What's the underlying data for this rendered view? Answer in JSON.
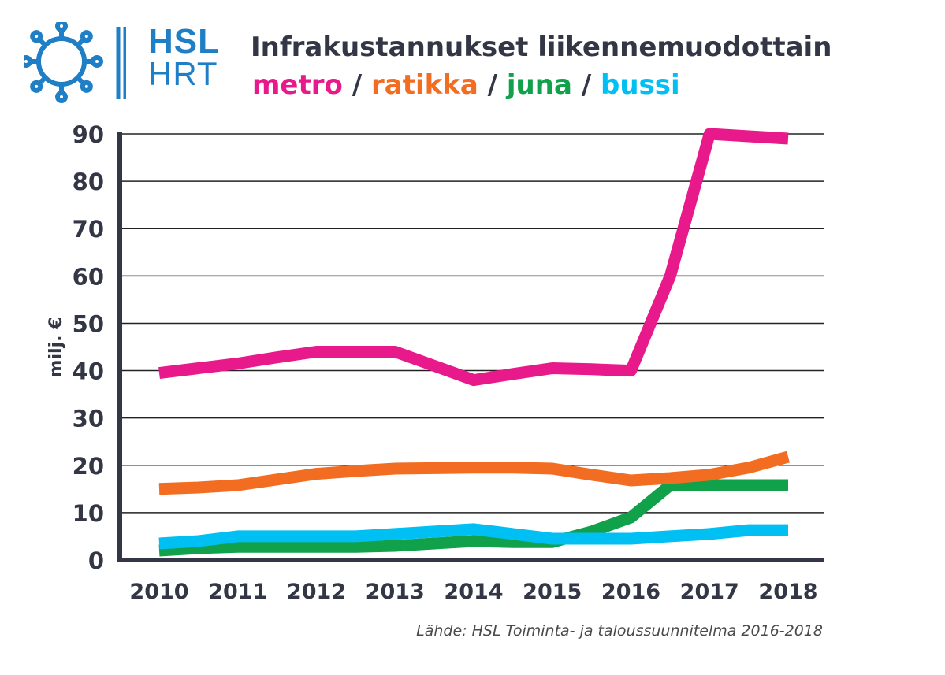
{
  "logo": {
    "line1": "HSL",
    "line2": "HRT"
  },
  "header": {
    "title": "Infrakustannukset liikennemuodottain",
    "separator": "/"
  },
  "source": "Lähde: HSL Toiminta- ja taloussuunnitelma 2016-2018",
  "colors": {
    "metro": "#e8198b",
    "ratikka": "#f26c21",
    "juna": "#10a14a",
    "bussi": "#00bff3",
    "dark": "#333745",
    "logo": "#1f7fc6"
  },
  "chart_data": {
    "type": "line",
    "title": "Infrakustannukset liikennemuodottain",
    "xlabel": "",
    "ylabel": "milj. €",
    "ylim": [
      0,
      90
    ],
    "yticks": [
      0,
      10,
      20,
      30,
      40,
      50,
      60,
      70,
      80,
      90
    ],
    "grid": true,
    "categories": [
      "2010",
      "2011",
      "2012",
      "2013",
      "2014",
      "2015",
      "2016",
      "2017",
      "2018"
    ],
    "x": [
      2010,
      2010.5,
      2011,
      2011.5,
      2012,
      2012.5,
      2013,
      2013.5,
      2014,
      2014.5,
      2015,
      2015.5,
      2016,
      2016.5,
      2017,
      2017.5,
      2018
    ],
    "series": [
      {
        "name": "metro",
        "color": "#e8198b",
        "values": [
          39.5,
          40.5,
          41.5,
          42.8,
          44,
          44,
          44,
          41,
          38,
          39.3,
          40.5,
          40.3,
          40,
          60,
          90,
          89.5,
          89
        ]
      },
      {
        "name": "ratikka",
        "color": "#f26c21",
        "values": [
          15,
          15.3,
          15.8,
          17,
          18.2,
          18.8,
          19.3,
          19.4,
          19.5,
          19.5,
          19.3,
          18,
          16.8,
          17.3,
          18,
          19.5,
          21.8
        ]
      },
      {
        "name": "juna",
        "color": "#10a14a",
        "values": [
          2,
          2.5,
          2.8,
          2.8,
          2.8,
          2.8,
          3,
          3.5,
          4,
          3.8,
          3.8,
          6,
          9,
          15.8,
          15.8,
          15.8,
          15.8
        ]
      },
      {
        "name": "bussi",
        "color": "#00bff3",
        "values": [
          3.5,
          4,
          5,
          5,
          5,
          5,
          5.5,
          6,
          6.5,
          5.5,
          4.5,
          4.5,
          4.5,
          5,
          5.5,
          6.3,
          6.3
        ]
      }
    ]
  }
}
